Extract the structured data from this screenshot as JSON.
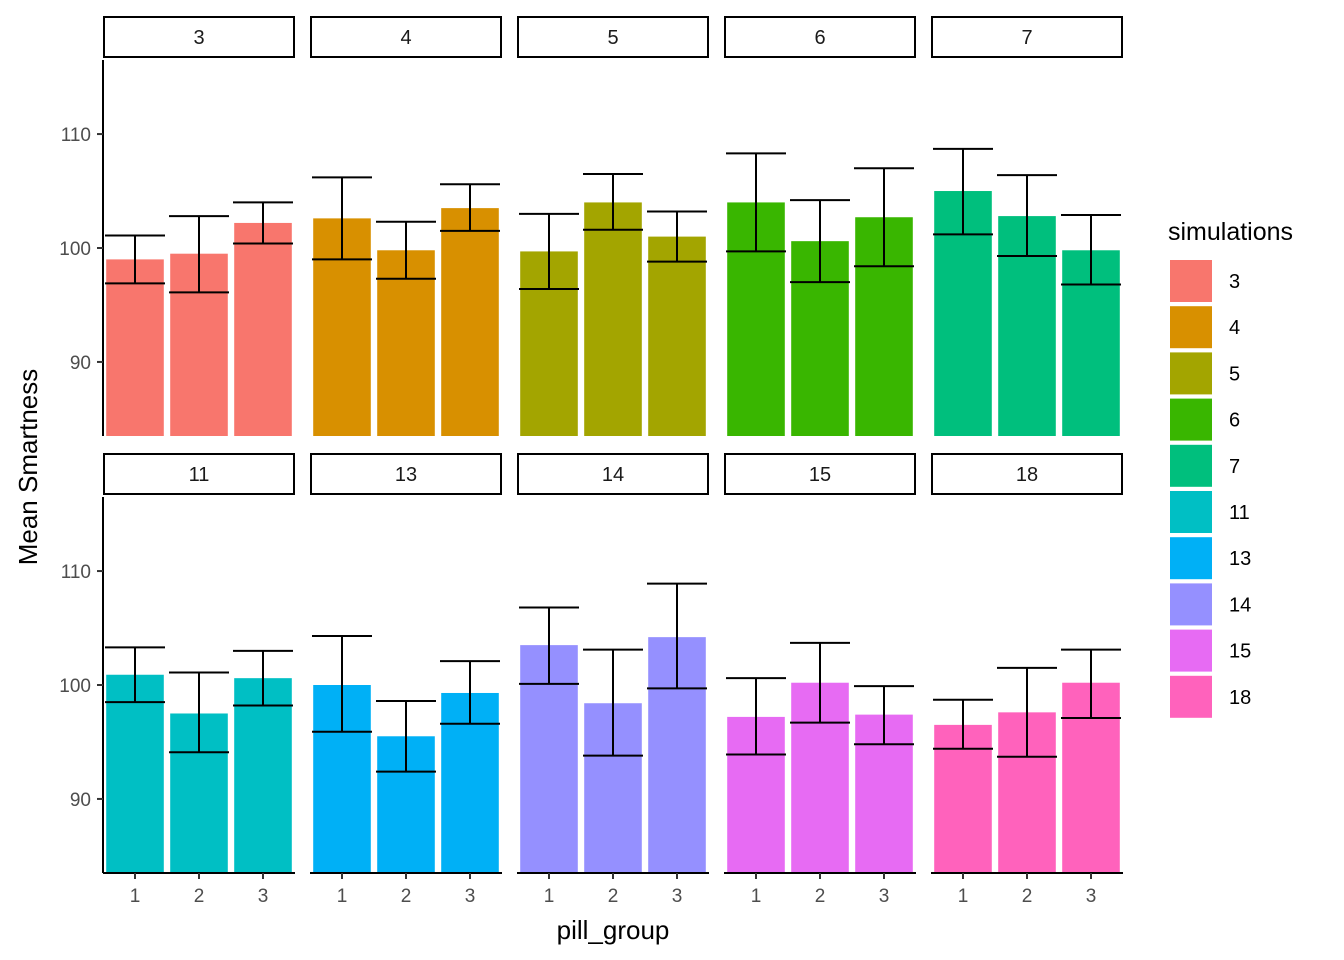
{
  "chart_data": {
    "type": "bar",
    "facet_variable": "simulations",
    "xlabel": "pill_group",
    "ylabel": "Mean Smartness",
    "categories": [
      "1",
      "2",
      "3"
    ],
    "y_ticks": [
      90,
      100,
      110
    ],
    "ylim": [
      83.5,
      116.5
    ],
    "legend": {
      "title": "simulations",
      "position": "right"
    },
    "facets": [
      {
        "label": "3",
        "color": "#F8766D",
        "values": [
          99.0,
          99.5,
          102.2
        ],
        "errors": [
          [
            96.9,
            101.1
          ],
          [
            96.1,
            102.8
          ],
          [
            100.4,
            104.0
          ]
        ]
      },
      {
        "label": "4",
        "color": "#D89000",
        "values": [
          102.6,
          99.8,
          103.5
        ],
        "errors": [
          [
            99.0,
            106.2
          ],
          [
            97.3,
            102.3
          ],
          [
            101.5,
            105.6
          ]
        ]
      },
      {
        "label": "5",
        "color": "#A3A500",
        "values": [
          99.7,
          104.0,
          101.0
        ],
        "errors": [
          [
            96.4,
            103.0
          ],
          [
            101.6,
            106.5
          ],
          [
            98.8,
            103.2
          ]
        ]
      },
      {
        "label": "6",
        "color": "#39B600",
        "values": [
          104.0,
          100.6,
          102.7
        ],
        "errors": [
          [
            99.7,
            108.3
          ],
          [
            97.0,
            104.2
          ],
          [
            98.4,
            107.0
          ]
        ]
      },
      {
        "label": "7",
        "color": "#00BF7D",
        "values": [
          105.0,
          102.8,
          99.8
        ],
        "errors": [
          [
            101.2,
            108.7
          ],
          [
            99.3,
            106.4
          ],
          [
            96.8,
            102.9
          ]
        ]
      },
      {
        "label": "11",
        "color": "#00BFC4",
        "values": [
          100.9,
          97.5,
          100.6
        ],
        "errors": [
          [
            98.5,
            103.3
          ],
          [
            94.1,
            101.1
          ],
          [
            98.2,
            103.0
          ]
        ]
      },
      {
        "label": "13",
        "color": "#00B0F6",
        "values": [
          100.0,
          95.5,
          99.3
        ],
        "errors": [
          [
            95.9,
            104.3
          ],
          [
            92.4,
            98.6
          ],
          [
            96.6,
            102.1
          ]
        ]
      },
      {
        "label": "14",
        "color": "#9590FF",
        "values": [
          103.5,
          98.4,
          104.2
        ],
        "errors": [
          [
            100.1,
            106.8
          ],
          [
            93.8,
            103.1
          ],
          [
            99.7,
            108.9
          ]
        ]
      },
      {
        "label": "15",
        "color": "#E76BF3",
        "values": [
          97.2,
          100.2,
          97.4
        ],
        "errors": [
          [
            93.9,
            100.6
          ],
          [
            96.7,
            103.7
          ],
          [
            94.8,
            99.9
          ]
        ]
      },
      {
        "label": "18",
        "color": "#FF62BC",
        "values": [
          96.5,
          97.6,
          100.2
        ],
        "errors": [
          [
            94.4,
            98.7
          ],
          [
            93.7,
            101.5
          ],
          [
            97.1,
            103.1
          ]
        ]
      }
    ]
  }
}
